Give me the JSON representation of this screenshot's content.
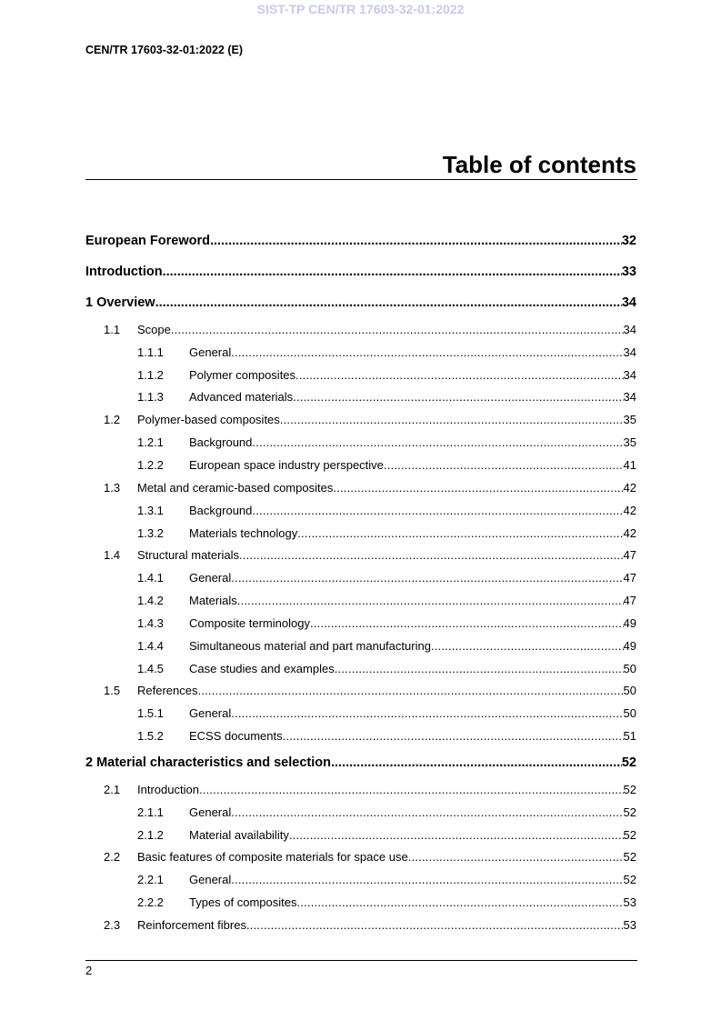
{
  "watermark": "SIST-TP CEN/TR 17603-32-01:2022",
  "header": "CEN/TR 17603-32-01:2022 (E)",
  "title": "Table of contents",
  "entries": [
    {
      "level": 1,
      "num": "",
      "text": "European Foreword",
      "page": "32"
    },
    {
      "level": 1,
      "num": "",
      "text": "Introduction",
      "page": "33"
    },
    {
      "level": 1,
      "num": "1",
      "text": "Overview",
      "page": "34"
    },
    {
      "level": 2,
      "num": "1.1",
      "text": "Scope",
      "page": "34"
    },
    {
      "level": 3,
      "num": "1.1.1",
      "text": "General",
      "page": "34"
    },
    {
      "level": 3,
      "num": "1.1.2",
      "text": "Polymer composites",
      "page": "34"
    },
    {
      "level": 3,
      "num": "1.1.3",
      "text": "Advanced materials",
      "page": "34"
    },
    {
      "level": 2,
      "num": "1.2",
      "text": "Polymer-based composites",
      "page": "35"
    },
    {
      "level": 3,
      "num": "1.2.1",
      "text": "Background",
      "page": "35"
    },
    {
      "level": 3,
      "num": "1.2.2",
      "text": "European space industry perspective",
      "page": "41"
    },
    {
      "level": 2,
      "num": "1.3",
      "text": "Metal and ceramic-based composites",
      "page": "42"
    },
    {
      "level": 3,
      "num": "1.3.1",
      "text": "Background",
      "page": "42"
    },
    {
      "level": 3,
      "num": "1.3.2",
      "text": "Materials technology",
      "page": "42"
    },
    {
      "level": 2,
      "num": "1.4",
      "text": "Structural materials",
      "page": "47"
    },
    {
      "level": 3,
      "num": "1.4.1",
      "text": "General",
      "page": "47"
    },
    {
      "level": 3,
      "num": "1.4.2",
      "text": "Materials",
      "page": "47"
    },
    {
      "level": 3,
      "num": "1.4.3",
      "text": "Composite terminology",
      "page": "49"
    },
    {
      "level": 3,
      "num": "1.4.4",
      "text": "Simultaneous material and part manufacturing",
      "page": "49"
    },
    {
      "level": 3,
      "num": "1.4.5",
      "text": "Case studies and examples",
      "page": "50"
    },
    {
      "level": 2,
      "num": "1.5",
      "text": "References",
      "page": "50"
    },
    {
      "level": 3,
      "num": "1.5.1",
      "text": "General",
      "page": "50"
    },
    {
      "level": 3,
      "num": "1.5.2",
      "text": "ECSS documents",
      "page": "51"
    },
    {
      "level": 1,
      "num": "2",
      "text": "Material characteristics and selection",
      "page": "52"
    },
    {
      "level": 2,
      "num": "2.1",
      "text": "Introduction",
      "page": "52"
    },
    {
      "level": 3,
      "num": "2.1.1",
      "text": "General",
      "page": "52"
    },
    {
      "level": 3,
      "num": "2.1.2",
      "text": "Material availability",
      "page": "52"
    },
    {
      "level": 2,
      "num": "2.2",
      "text": "Basic features of composite materials for space use",
      "page": "52"
    },
    {
      "level": 3,
      "num": "2.2.1",
      "text": "General",
      "page": "52"
    },
    {
      "level": 3,
      "num": "2.2.2",
      "text": "Types of composites",
      "page": "53"
    },
    {
      "level": 2,
      "num": "2.3",
      "text": "Reinforcement fibres",
      "page": "53"
    }
  ],
  "footer": {
    "page_number": "2"
  }
}
